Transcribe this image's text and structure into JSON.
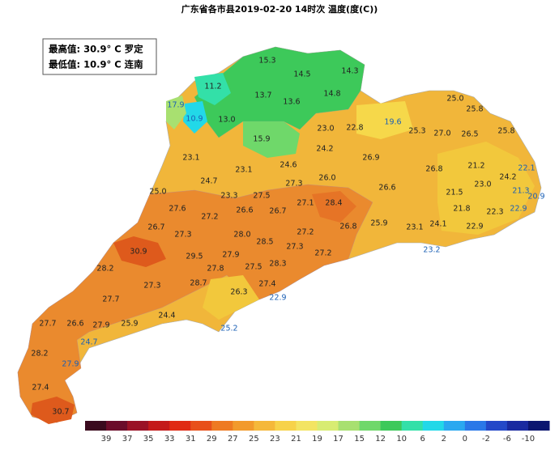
{
  "header": {
    "title": "广东省各市县2019-02-20 14时次 温度(度(C))"
  },
  "info_box": {
    "max": "最高值: 30.9° C 罗定",
    "min": "最低值: 10.9° C 连南"
  },
  "stations": [
    "15.3",
    "14.5",
    "14.3",
    "11.2",
    "13.7",
    "13.6",
    "14.8",
    "17.9",
    "10.9",
    "13.0",
    "19.6",
    "25.0",
    "25.8",
    "23.0",
    "22.8",
    "25.3",
    "27.0",
    "26.5",
    "25.8",
    "15.9",
    "24.2",
    "23.1",
    "26.9",
    "24.6",
    "23.1",
    "26.8",
    "21.2",
    "22.1",
    "24.7",
    "26.0",
    "27.3",
    "24.2",
    "23.0",
    "26.6",
    "25.0",
    "21.3",
    "21.5",
    "20.9",
    "27.5",
    "23.3",
    "27.1",
    "28.4",
    "27.6",
    "27.2",
    "26.6",
    "26.7",
    "21.8",
    "22.3",
    "22.9",
    "26.7",
    "25.9",
    "26.8",
    "24.1",
    "23.1",
    "22.9",
    "27.3",
    "28.0",
    "27.2",
    "28.5",
    "27.3",
    "30.9",
    "29.5",
    "27.9",
    "23.2",
    "27.2",
    "28.3",
    "28.2",
    "27.8",
    "27.5",
    "28.7",
    "27.3",
    "27.4",
    "26.3",
    "27.7",
    "22.9",
    "24.4",
    "27.7",
    "26.6",
    "27.9",
    "25.9",
    "25.2",
    "24.7",
    "28.2",
    "27.9",
    "27.4",
    "30.7"
  ],
  "legend": {
    "ticks": [
      39,
      37,
      35,
      33,
      31,
      29,
      27,
      25,
      23,
      21,
      19,
      17,
      15,
      12,
      10,
      6,
      2,
      0,
      -2,
      -6,
      -10
    ],
    "colors": [
      "#3a0a1e",
      "#6b0c2a",
      "#9a1226",
      "#c41a1a",
      "#e02a14",
      "#e8501a",
      "#ee7a22",
      "#f29a2c",
      "#f5b83a",
      "#f7d24a",
      "#f3e462",
      "#d8ec72",
      "#a8e070",
      "#6fd86a",
      "#3dc95a",
      "#33e0a8",
      "#22d8e8",
      "#2aa8f0",
      "#2a78e8",
      "#2448c8",
      "#1a2aa0",
      "#0c1670"
    ]
  }
}
